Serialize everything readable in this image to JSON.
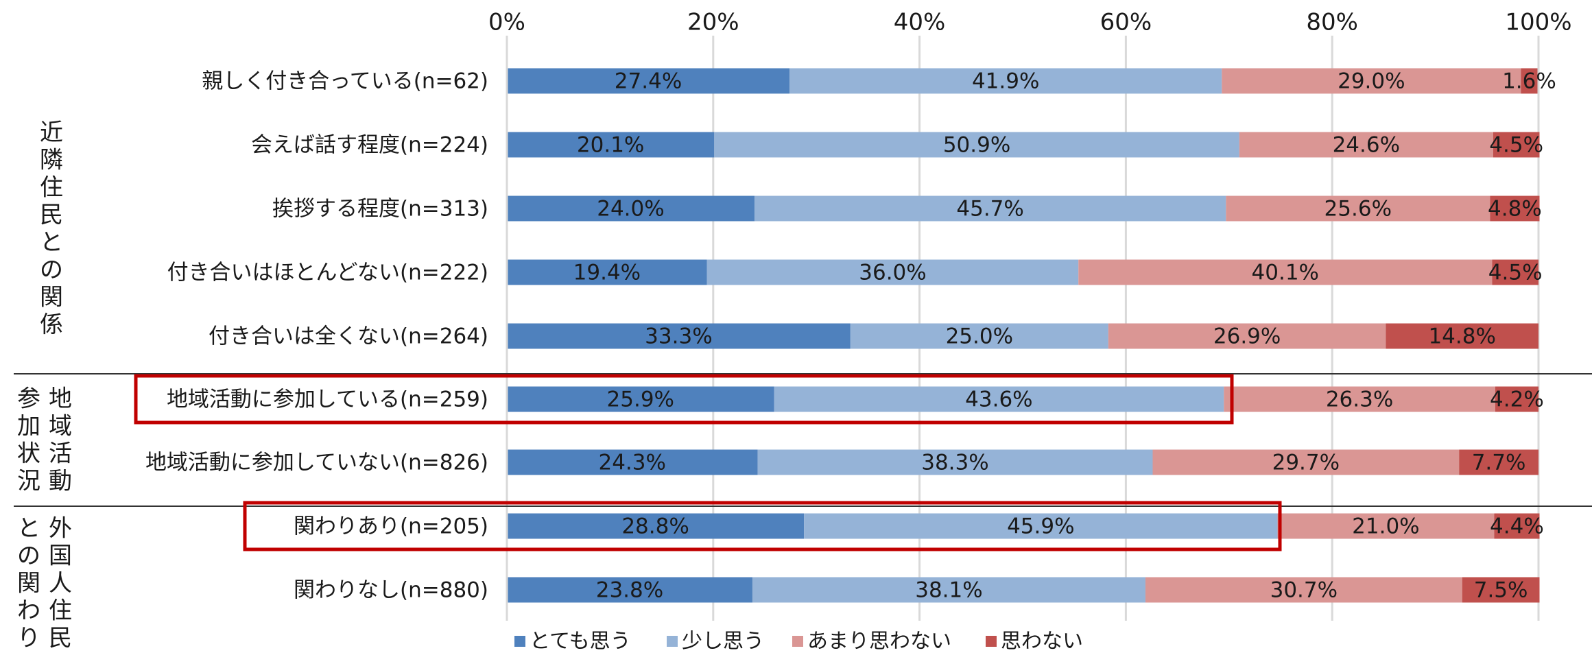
{
  "chart_data": {
    "type": "bar",
    "orientation": "horizontal",
    "stacked": "percent",
    "xlim": [
      0,
      100
    ],
    "x_ticks": [
      "0%",
      "20%",
      "40%",
      "60%",
      "80%",
      "100%"
    ],
    "x_axis_position": "top",
    "grid": true,
    "legend_position": "bottom",
    "groups": [
      {
        "label": "近隣住民との関係",
        "rows": [
          0,
          1,
          2,
          3,
          4
        ]
      },
      {
        "label": "地域活動参加状況",
        "rows": [
          5,
          6
        ]
      },
      {
        "label": "外国人住民との関わり",
        "rows": [
          7,
          8
        ]
      }
    ],
    "categories": [
      "親しく付き合っている(n=62)",
      "会えば話す程度(n=224)",
      "挨拶する程度(n=313)",
      "付き合いはほとんどない(n=222)",
      "付き合いは全くない(n=264)",
      "地域活動に参加している(n=259)",
      "地域活動に参加していない(n=826)",
      "関わりあり(n=205)",
      "関わりなし(n=880)"
    ],
    "series": [
      {
        "name": "とても思う",
        "color": "#4f81bd",
        "values": [
          27.4,
          20.1,
          24.0,
          19.4,
          33.3,
          25.9,
          24.3,
          28.8,
          23.8
        ]
      },
      {
        "name": "少し思う",
        "color": "#95b3d7",
        "values": [
          41.9,
          50.9,
          45.7,
          36.0,
          25.0,
          43.6,
          38.3,
          45.9,
          38.1
        ]
      },
      {
        "name": "あまり思わない",
        "color": "#da9694",
        "values": [
          29.0,
          24.6,
          25.6,
          40.1,
          26.9,
          26.3,
          29.7,
          21.0,
          30.7
        ]
      },
      {
        "name": "思わない",
        "color": "#c0504d",
        "values": [
          1.6,
          4.5,
          4.8,
          4.5,
          14.8,
          4.2,
          7.7,
          4.4,
          7.5
        ]
      }
    ],
    "value_labels": [
      [
        "27.4%",
        "20.1%",
        "24.0%",
        "19.4%",
        "33.3%",
        "25.9%",
        "24.3%",
        "28.8%",
        "23.8%"
      ],
      [
        "41.9%",
        "50.9%",
        "45.7%",
        "36.0%",
        "25.0%",
        "43.6%",
        "38.3%",
        "45.9%",
        "38.1%"
      ],
      [
        "29.0%",
        "24.6%",
        "25.6%",
        "40.1%",
        "26.9%",
        "26.3%",
        "29.7%",
        "21.0%",
        "30.7%"
      ],
      [
        "1.6%",
        "4.5%",
        "4.8%",
        "4.5%",
        "14.8%",
        "4.2%",
        "7.7%",
        "4.4%",
        "7.5%"
      ]
    ],
    "highlighted_rows": [
      5,
      7
    ],
    "highlight_color": "#c00000"
  }
}
